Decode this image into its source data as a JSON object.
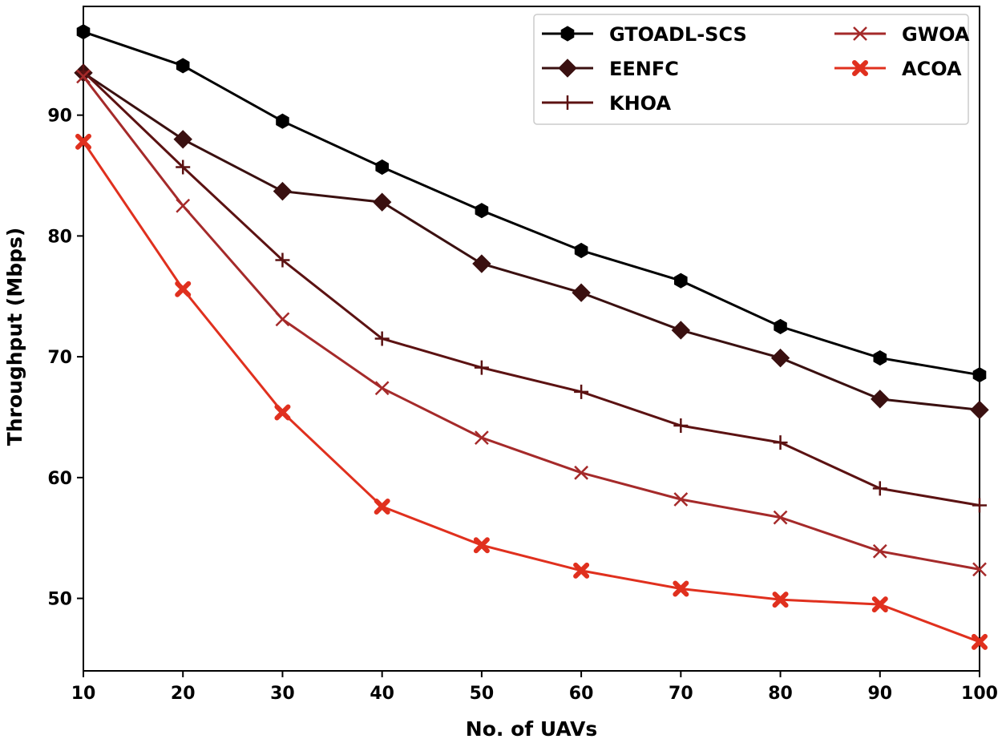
{
  "chart_data": {
    "type": "line",
    "title": "",
    "xlabel": "No. of UAVs",
    "ylabel": "Throughput (Mbps)",
    "x": [
      10,
      20,
      30,
      40,
      50,
      60,
      70,
      80,
      90,
      100
    ],
    "xticks": [
      10,
      20,
      30,
      40,
      50,
      60,
      70,
      80,
      90,
      100
    ],
    "yticks": [
      50,
      60,
      70,
      80,
      90
    ],
    "xlim": [
      10,
      100
    ],
    "ylim": [
      44,
      99
    ],
    "grid": false,
    "legend_position": "top-right",
    "series": [
      {
        "name": "GTOADL-SCS",
        "color": "#000000",
        "marker": "hexagon",
        "values": [
          96.9,
          94.1,
          89.5,
          85.7,
          82.1,
          78.8,
          76.3,
          72.5,
          69.9,
          68.5
        ]
      },
      {
        "name": "EENFC",
        "color": "#3a1010",
        "marker": "diamond",
        "values": [
          93.5,
          88.0,
          83.7,
          82.8,
          77.7,
          75.3,
          72.2,
          69.9,
          66.5,
          65.6
        ]
      },
      {
        "name": "KHOA",
        "color": "#5c1212",
        "marker": "plus",
        "values": [
          93.6,
          85.7,
          78.0,
          71.5,
          69.1,
          67.1,
          64.3,
          62.9,
          59.1,
          57.7
        ]
      },
      {
        "name": "GWOA",
        "color": "#a52a2a",
        "marker": "x",
        "values": [
          93.2,
          82.5,
          73.1,
          67.4,
          63.3,
          60.4,
          58.2,
          56.7,
          53.9,
          52.4
        ]
      },
      {
        "name": "ACOA",
        "color": "#e0301e",
        "marker": "X",
        "values": [
          87.8,
          75.6,
          65.4,
          57.6,
          54.4,
          52.3,
          50.8,
          49.9,
          49.5,
          46.4
        ]
      }
    ]
  }
}
